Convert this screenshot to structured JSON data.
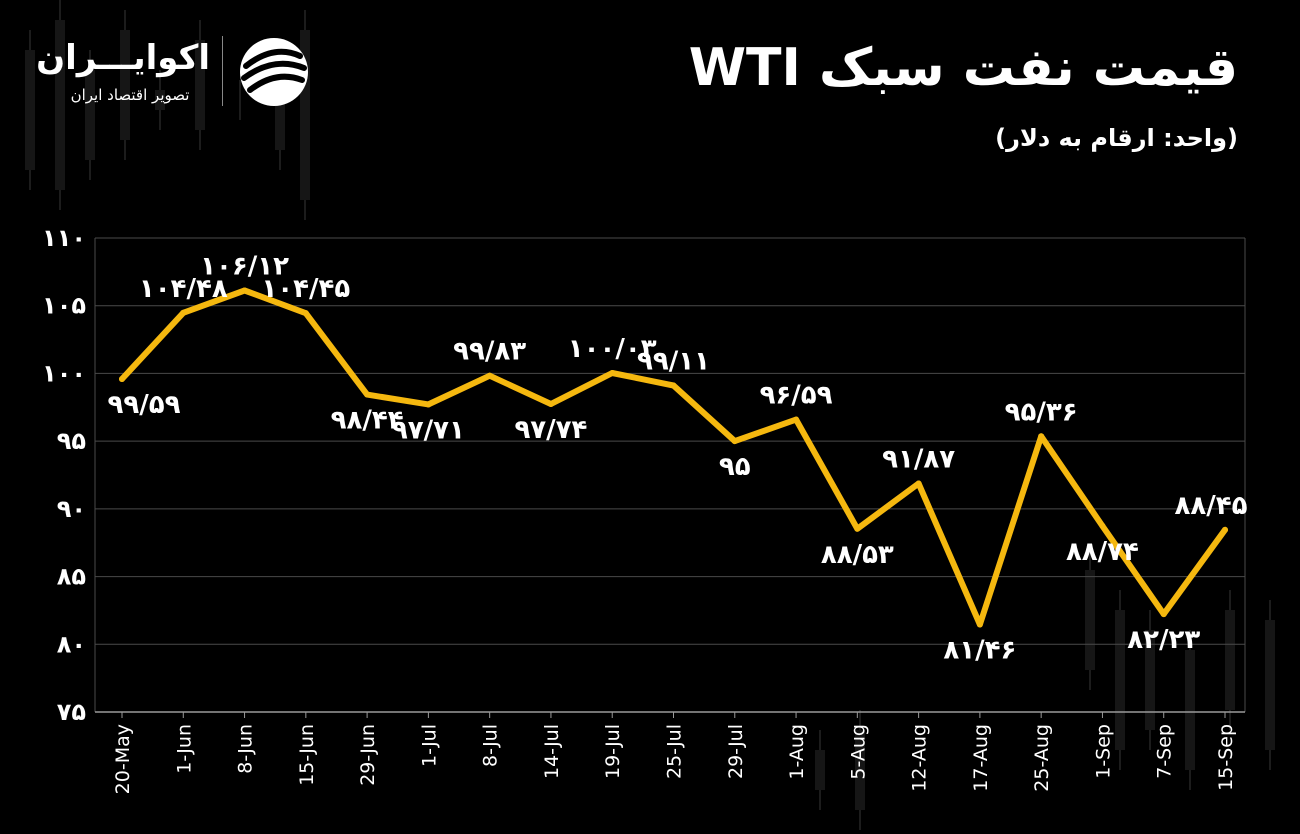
{
  "header": {
    "title": "قیمت نفت سبک WTI",
    "unit_note": "(واحد: ارقام به دلار)"
  },
  "logo": {
    "name": "اکوایـــران",
    "tagline": "تصویر اقتصاد ایران",
    "mark_icon": "ecoiran-swoosh-icon"
  },
  "colors": {
    "background": "#000000",
    "line": "#F5B80F",
    "grid": "#4a4a4a",
    "text": "#ffffff"
  },
  "chart_data": {
    "type": "line",
    "x": [
      "20-May",
      "1-Jun",
      "8-Jun",
      "15-Jun",
      "29-Jun",
      "1-Jul",
      "8-Jul",
      "14-Jul",
      "19-Jul",
      "25-Jul",
      "29-Jul",
      "1-Aug",
      "5-Aug",
      "12-Aug",
      "17-Aug",
      "25-Aug",
      "1-Sep",
      "7-Sep",
      "15-Sep"
    ],
    "values": [
      99.59,
      104.48,
      106.12,
      104.45,
      98.44,
      97.71,
      99.83,
      97.74,
      100.03,
      99.11,
      95,
      96.59,
      88.53,
      91.87,
      81.46,
      95.36,
      88.74,
      82.23,
      88.45
    ],
    "data_labels": [
      "۹۹/۵۹",
      "۱۰۴/۴۸",
      "۱۰۶/۱۲",
      "۱۰۴/۴۵",
      "۹۸/۴۴",
      "۹۷/۷۱",
      "۹۹/۸۳",
      "۹۷/۷۴",
      "۱۰۰/۰۳",
      "۹۹/۱۱",
      "۹۵",
      "۹۶/۵۹",
      "۸۸/۵۳",
      "۹۱/۸۷",
      "۸۱/۴۶",
      "۹۵/۳۶",
      "۸۸/۷۴",
      "۸۲/۲۳",
      "۸۸/۴۵"
    ],
    "label_pos": [
      "below",
      "above",
      "above",
      "above",
      "below",
      "below",
      "above",
      "below",
      "above",
      "above",
      "below",
      "above",
      "below",
      "above",
      "below",
      "above",
      "below",
      "below",
      "above"
    ],
    "ylim": [
      75,
      110
    ],
    "yticks": [
      75,
      80,
      85,
      90,
      95,
      100,
      105,
      110
    ],
    "ytick_labels": [
      "۷۵",
      "۸۰",
      "۸۵",
      "۹۰",
      "۹۵",
      "۱۰۰",
      "۱۰۵",
      "۱۱۰"
    ],
    "grid": true,
    "title": "قیمت نفت سبک WTI",
    "xlabel": "",
    "ylabel": ""
  }
}
